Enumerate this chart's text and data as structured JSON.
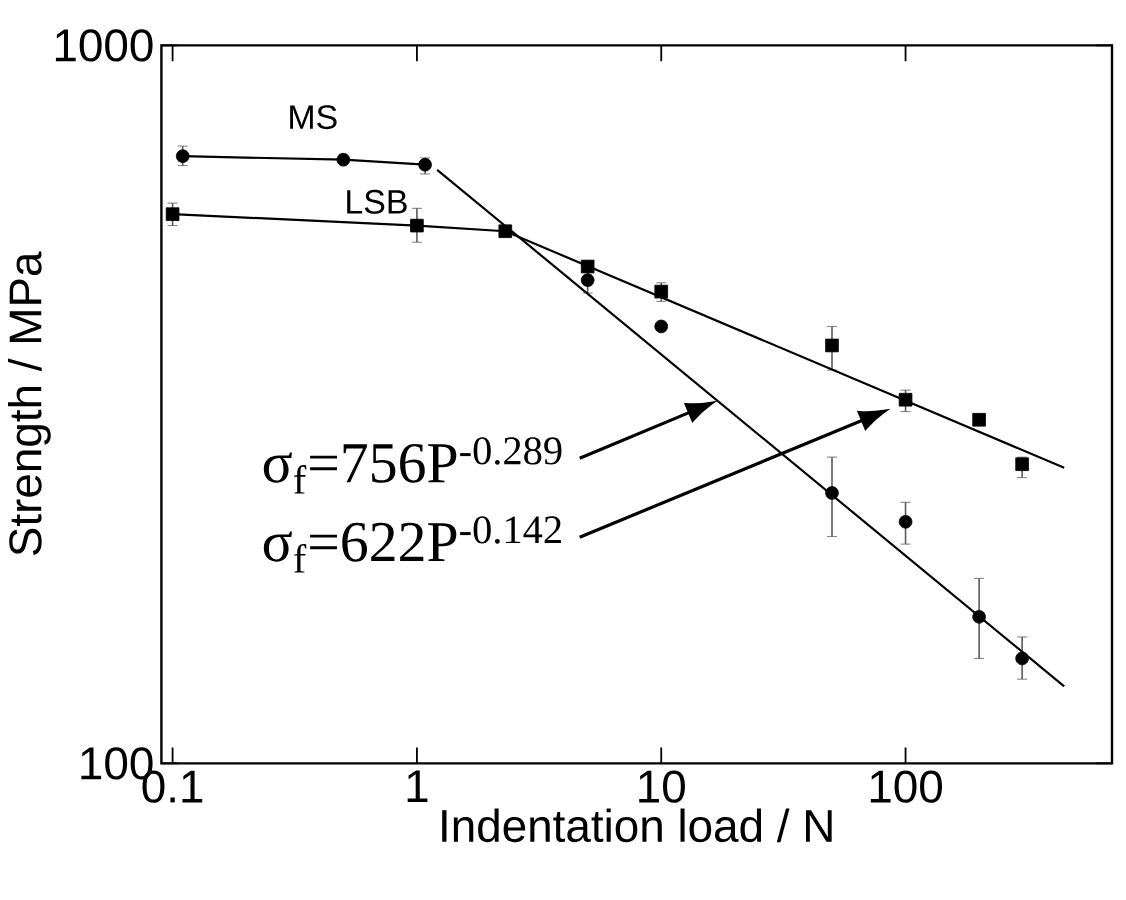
{
  "chart_data": {
    "type": "scatter",
    "xlabel": "Indentation load / N",
    "ylabel": "Strength / MPa",
    "log": "xy",
    "xlim": [
      0.09,
      700
    ],
    "xticks": [
      0.1,
      1,
      10,
      100
    ],
    "ylim": [
      100,
      1000
    ],
    "yticks": [
      100,
      1000
    ],
    "annotations": [
      {
        "text": "σ$_{f}$=756P$^{-0.289}$",
        "x": 17,
        "y": 320
      },
      "σ$_{f}$=622P$^{-0.142}$"
    ],
    "series": [
      {
        "name": "MS",
        "marker": "circle",
        "color": "#000000",
        "x": [
          0.11,
          0.5,
          1.08,
          5,
          10,
          50,
          100,
          200,
          300
        ],
        "values": [
          701,
          693,
          682,
          471,
          406,
          238,
          217,
          160,
          140
        ],
        "errors": [
          [
            680,
            724
          ],
          null,
          [
            662,
            697
          ],
          [
            452,
            487
          ],
          null,
          [
            207,
            267
          ],
          [
            202,
            231
          ],
          [
            140,
            181
          ],
          [
            131,
            150
          ]
        ]
      },
      {
        "name": "LSB",
        "marker": "square",
        "color": "#000000",
        "x": [
          0.1,
          1,
          2.3,
          5,
          10,
          50,
          100,
          200,
          300
        ],
        "values": [
          582,
          561,
          551,
          492,
          454,
          382,
          321,
          301,
          261
        ],
        "errors": [
          [
            561,
            603
          ],
          [
            532,
            593
          ],
          null,
          null,
          [
            440,
            467
          ],
          [
            353,
            406
          ],
          [
            309,
            331
          ],
          null,
          [
            250,
            267
          ]
        ]
      },
      {
        "type": "line",
        "color": "#000000",
        "x": [
          0.11,
          0.5,
          1.08
        ],
        "values": [
          701,
          693,
          682
        ]
      },
      {
        "type": "line",
        "color": "#000000",
        "x": [
          1.21,
          446
        ],
        "values": [
          671,
          128
        ]
      },
      {
        "type": "line",
        "color": "#000000",
        "x": [
          0.1,
          1,
          2.3
        ],
        "values": [
          582,
          561,
          551
        ]
      },
      {
        "type": "line",
        "color": "#000000",
        "x": [
          2.3,
          446
        ],
        "values": [
          551,
          258
        ]
      }
    ]
  }
}
